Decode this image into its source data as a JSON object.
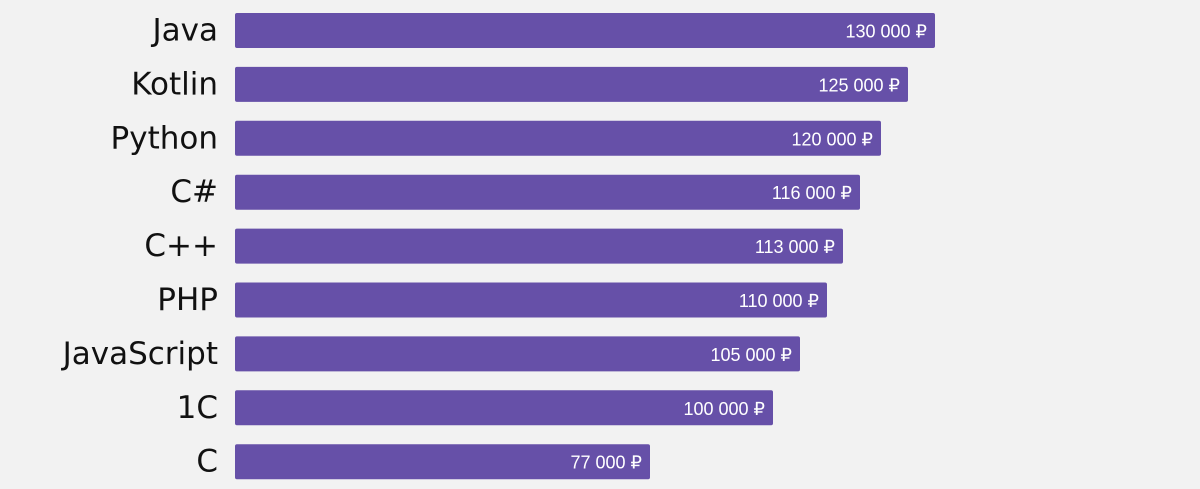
{
  "chart_data": {
    "type": "bar",
    "orientation": "horizontal",
    "title": "",
    "xlabel": "",
    "ylabel": "",
    "currency_suffix": "₽",
    "categories": [
      "Java",
      "Kotlin",
      "Python",
      "C#",
      "C++",
      "PHP",
      "JavaScript",
      "1C",
      "C"
    ],
    "values": [
      130000,
      125000,
      120000,
      116000,
      113000,
      110000,
      105000,
      100000,
      77000
    ],
    "value_labels": [
      "130 000 ₽",
      "125 000 ₽",
      "120 000 ₽",
      "116 000 ₽",
      "113 000 ₽",
      "110 000 ₽",
      "105 000 ₽",
      "100 000 ₽",
      "77 000 ₽"
    ],
    "xlim": [
      0,
      130000
    ],
    "grid": false,
    "legend": "none"
  },
  "colors": {
    "bar": "#6650a8",
    "background": "#f2f2f2",
    "category_text": "#111111",
    "value_text": "#ffffff"
  }
}
